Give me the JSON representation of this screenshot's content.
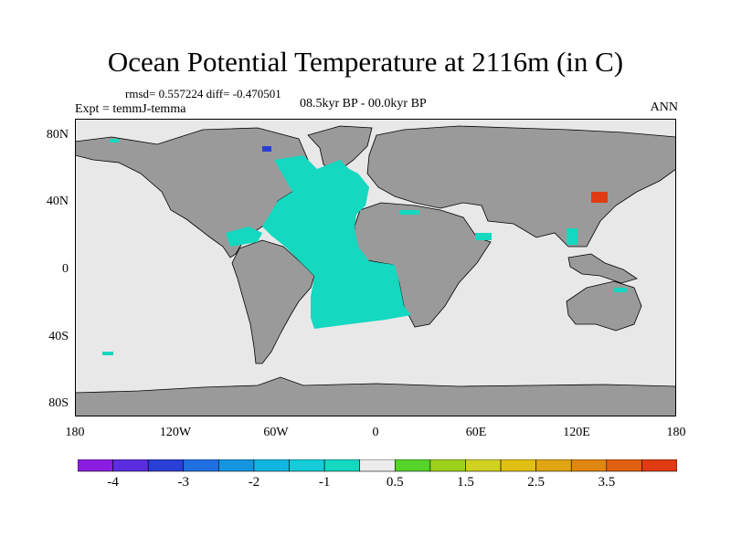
{
  "title": "Ocean Potential Temperature at 2116m (in C)",
  "stats": "rmsd= 0.557224  diff= -0.470501",
  "experiment": "Expt = temmJ-temma",
  "period": "08.5kyr BP - 00.0kyr BP",
  "season": "ANN",
  "lat_labels": [
    "80N",
    "40N",
    "0",
    "40S",
    "80S"
  ],
  "lon_labels": [
    "180",
    "120W",
    "60W",
    "0",
    "60E",
    "120E",
    "180"
  ],
  "colorbar": {
    "colors": [
      "#8a1de0",
      "#5b2ce0",
      "#2a3fd6",
      "#1f6fe0",
      "#1595e0",
      "#12b5e0",
      "#13ccd8",
      "#14d8c0",
      "#ececec",
      "#55d42a",
      "#9ed11c",
      "#cfd221",
      "#e0c012",
      "#e0a512",
      "#e08612",
      "#e06012",
      "#e03b12"
    ],
    "labels": [
      "-4",
      "-3",
      "-2",
      "-1",
      "0.5",
      "1.5",
      "2.5",
      "3.5"
    ]
  },
  "colors": {
    "land": "#9a9a9a",
    "ocean_neutral": "#e8e8e8",
    "anomaly_cool": "#14d8c0",
    "anomaly_cold": "#2a3fd6",
    "anomaly_warm": "#e03b12"
  }
}
